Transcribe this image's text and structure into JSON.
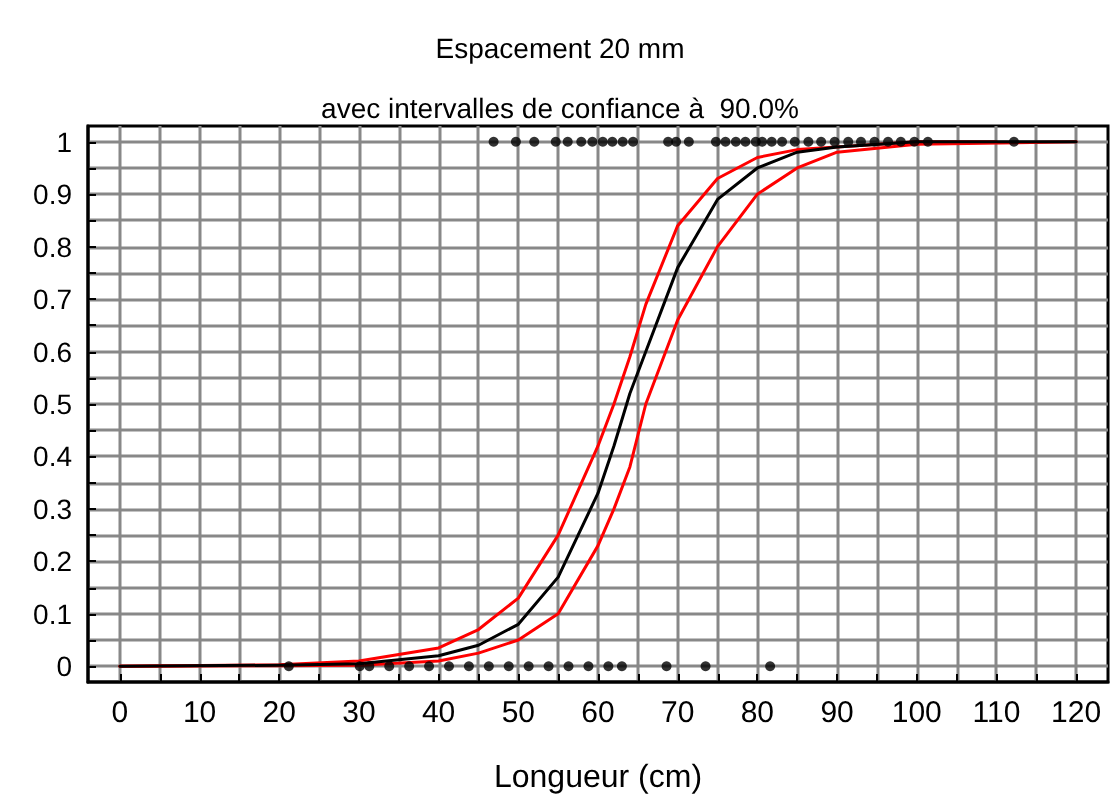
{
  "chart_data": {
    "type": "line",
    "title": "Espacement 20 mm",
    "subtitle": "avec intervalles de confiance à  90.0%",
    "xlabel": "Longueur (cm)",
    "xlim": [
      -4,
      124
    ],
    "ylim": [
      -0.03,
      1.03
    ],
    "xticks": [
      0,
      {
        "value": 5,
        "label": null
      },
      10,
      {
        "value": 15,
        "label": null
      },
      20,
      {
        "value": 25,
        "label": null
      },
      30,
      {
        "value": 35,
        "label": null
      },
      40,
      {
        "value": 45,
        "label": null
      },
      50,
      {
        "value": 55,
        "label": null
      },
      60,
      {
        "value": 65,
        "label": null
      },
      70,
      {
        "value": 75,
        "label": null
      },
      80,
      {
        "value": 85,
        "label": null
      },
      90,
      {
        "value": 95,
        "label": null
      },
      100,
      {
        "value": 105,
        "label": null
      },
      110,
      {
        "value": 115,
        "label": null
      },
      120
    ],
    "yticks": [
      0,
      {
        "value": 0.05,
        "label": null
      },
      0.1,
      {
        "value": 0.15,
        "label": null
      },
      0.2,
      {
        "value": 0.25,
        "label": null
      },
      0.3,
      {
        "value": 0.35,
        "label": null
      },
      0.4,
      {
        "value": 0.45,
        "label": null
      },
      0.5,
      {
        "value": 0.55,
        "label": null
      },
      0.6,
      {
        "value": 0.65,
        "label": null
      },
      0.7,
      {
        "value": 0.75,
        "label": null
      },
      0.8,
      {
        "value": 0.85,
        "label": null
      },
      0.9,
      {
        "value": 0.95,
        "label": null
      },
      1
    ],
    "grid": true,
    "series": [
      {
        "marker": "none",
        "color": "#ff0000",
        "x": [
          0,
          20,
          30,
          40,
          45,
          50,
          55,
          60,
          62,
          64,
          66,
          70,
          75,
          80,
          85,
          90,
          100,
          110
        ],
        "values": [
          0,
          0.003,
          0.01,
          0.035,
          0.07,
          0.13,
          0.25,
          0.42,
          0.5,
          0.59,
          0.69,
          0.84,
          0.93,
          0.97,
          0.985,
          0.99,
          1,
          1
        ]
      },
      {
        "marker": "none",
        "color": "#ff0000",
        "x": [
          0,
          20,
          30,
          40,
          45,
          50,
          55,
          60,
          62,
          64,
          66,
          70,
          75,
          80,
          85,
          90,
          100,
          120
        ],
        "values": [
          0,
          0.001,
          0.002,
          0.01,
          0.025,
          0.05,
          0.1,
          0.23,
          0.3,
          0.38,
          0.5,
          0.66,
          0.8,
          0.9,
          0.95,
          0.98,
          0.995,
          1
        ]
      },
      {
        "marker": "none",
        "color": "#000000",
        "x": [
          0,
          20,
          30,
          40,
          45,
          50,
          55,
          60,
          62,
          64,
          66,
          70,
          75,
          80,
          85,
          90,
          100,
          120
        ],
        "values": [
          0,
          0.002,
          0.005,
          0.02,
          0.04,
          0.08,
          0.17,
          0.33,
          0.42,
          0.52,
          0.6,
          0.76,
          0.89,
          0.95,
          0.98,
          0.99,
          1,
          1
        ]
      },
      {
        "type": "scatter",
        "marker": "circle",
        "color": "#000000",
        "x": [
          46.9,
          49.7,
          52,
          54.7,
          56.2,
          57.9,
          59.3,
          60.6,
          61.8,
          63.1,
          64.4,
          68.8,
          69.8,
          71.4,
          74.8,
          76,
          77.3,
          78.5,
          79.8,
          80.6,
          81.8,
          83.1,
          84.7,
          86.4,
          88,
          89.7,
          91.4,
          93,
          94.7,
          96.4,
          98,
          99.7,
          101.4,
          112.2
        ],
        "values": [
          1,
          1,
          1,
          1,
          1,
          1,
          1,
          1,
          1,
          1,
          1,
          1,
          1,
          1,
          1,
          1,
          1,
          1,
          1,
          1,
          1,
          1,
          1,
          1,
          1,
          1,
          1,
          1,
          1,
          1,
          1,
          1,
          1,
          1
        ]
      },
      {
        "type": "scatter",
        "marker": "circle",
        "color": "#000000",
        "x": [
          21.2,
          30.1,
          31.3,
          33.8,
          36.3,
          38.8,
          41.3,
          43.8,
          46.3,
          48.8,
          51.3,
          53.8,
          56.3,
          58.8,
          61.3,
          63,
          68.6,
          73.5,
          81.6
        ],
        "values": [
          0,
          0,
          0,
          0,
          0,
          0,
          0,
          0,
          0,
          0,
          0,
          0,
          0,
          0,
          0,
          0,
          0,
          0,
          0
        ]
      }
    ]
  }
}
